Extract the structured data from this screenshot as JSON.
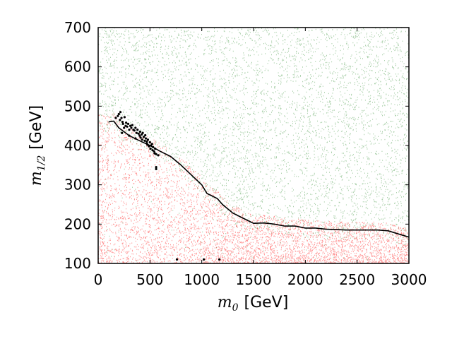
{
  "chart_data": {
    "type": "scatter",
    "xlabel": {
      "symbol": "m",
      "subscript": "0",
      "unit": "[GeV]"
    },
    "ylabel": {
      "symbol": "m",
      "subscript": "1/2",
      "unit": "[GeV]"
    },
    "xlim": [
      0,
      3000
    ],
    "ylim": [
      100,
      700
    ],
    "x_ticks": [
      0,
      500,
      1000,
      1500,
      2000,
      2500,
      3000
    ],
    "y_ticks": [
      100,
      200,
      300,
      400,
      500,
      600,
      700
    ],
    "grid": false,
    "legend": "none",
    "colors": {
      "allowed_points": "#2e8b2e",
      "excluded_points": "#ff2020",
      "curve": "#000000",
      "best_fit_points": "#000000"
    },
    "series": [
      {
        "type": "scatter-cloud",
        "role": "green",
        "description_region": "upper",
        "x_range": [
          0,
          3000
        ],
        "y_range": [
          100,
          700
        ]
      },
      {
        "type": "scatter-cloud",
        "role": "red",
        "description_region": "lower",
        "x_range": [
          0,
          3000
        ],
        "y_range": [
          100,
          480
        ]
      },
      {
        "type": "line",
        "role": "boundary",
        "x": [
          100,
          150,
          200,
          300,
          400,
          500,
          600,
          700,
          800,
          900,
          1000,
          1050,
          1150,
          1200,
          1300,
          1400,
          1500,
          1600,
          1700,
          1800,
          1900,
          2000,
          2100,
          2200,
          2300,
          2400,
          2500,
          2600,
          2700,
          2800,
          2900,
          3000
        ],
        "y": [
          460,
          462,
          445,
          425,
          412,
          400,
          385,
          372,
          350,
          325,
          300,
          278,
          265,
          250,
          228,
          215,
          202,
          203,
          200,
          195,
          195,
          190,
          190,
          187,
          186,
          185,
          185,
          185,
          185,
          183,
          175,
          167
        ]
      },
      {
        "type": "scatter",
        "role": "black-points",
        "x": [
          170,
          190,
          200,
          210,
          215,
          225,
          235,
          240,
          250,
          255,
          265,
          270,
          280,
          290,
          300,
          310,
          320,
          330,
          340,
          350,
          360,
          370,
          380,
          390,
          400,
          405,
          410,
          420,
          425,
          430,
          440,
          450,
          455,
          460,
          470,
          475,
          480,
          490,
          500,
          505,
          510,
          520,
          525,
          530,
          540,
          545,
          550,
          560,
          560,
          580,
          230,
          300,
          360,
          470,
          560,
          760,
          1170,
          1020
        ],
        "y": [
          470,
          475,
          480,
          465,
          485,
          470,
          460,
          455,
          445,
          472,
          450,
          458,
          448,
          455,
          440,
          450,
          445,
          452,
          440,
          438,
          445,
          432,
          440,
          430,
          425,
          435,
          420,
          428,
          415,
          432,
          422,
          412,
          426,
          418,
          410,
          402,
          415,
          398,
          408,
          392,
          400,
          404,
          388,
          396,
          385,
          380,
          392,
          378,
          340,
          375,
          432,
          425,
          418,
          405,
          345,
          110,
          110,
          110
        ]
      }
    ]
  }
}
